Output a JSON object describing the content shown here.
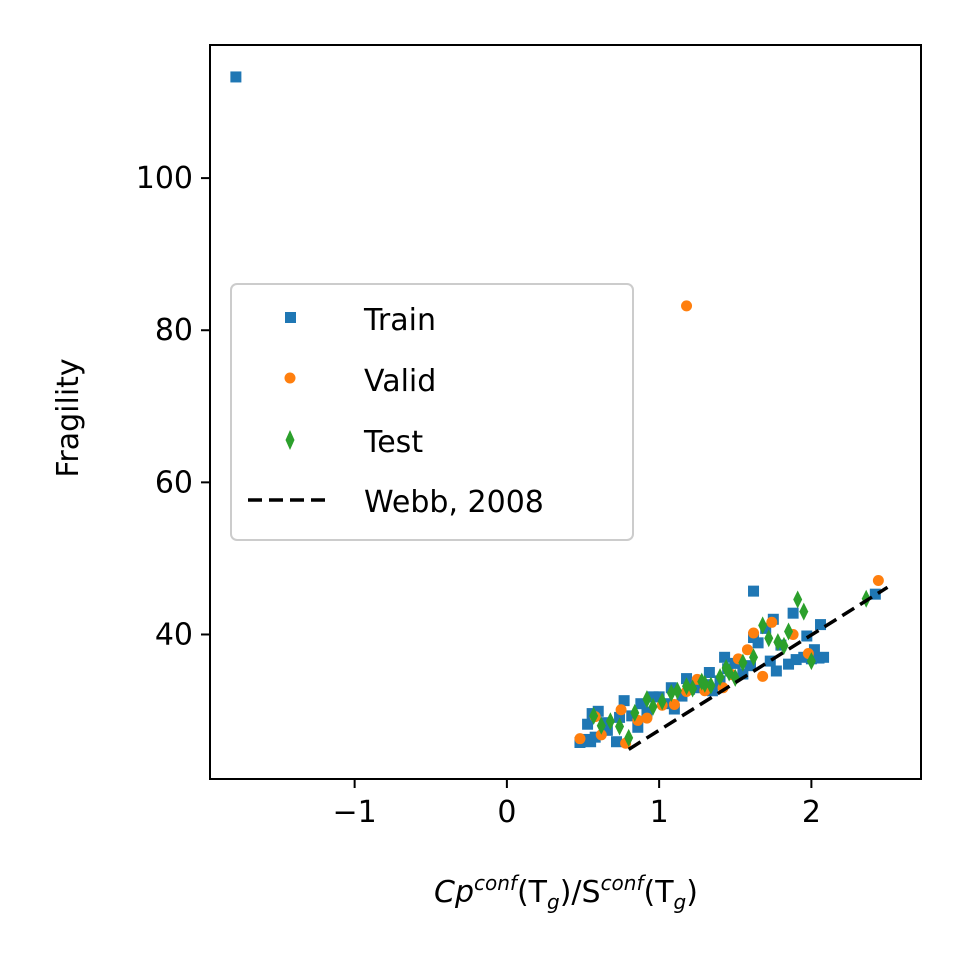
{
  "chart_data": {
    "type": "scatter",
    "xlabel": {
      "base": "Cp",
      "sup1": "conf",
      "mid1": "(T",
      "sub1": "g",
      "mid2": ")/S",
      "sup2": "conf",
      "mid3": "(T",
      "sub2": "g",
      "end": ")"
    },
    "ylabel": "Fragility",
    "xlim": [
      -1.95,
      2.72
    ],
    "ylim": [
      21.0,
      117.5
    ],
    "xticks": [
      {
        "value": -1,
        "label": "−1"
      },
      {
        "value": 0,
        "label": "0"
      },
      {
        "value": 1,
        "label": "1"
      },
      {
        "value": 2,
        "label": "2"
      }
    ],
    "yticks": [
      {
        "value": 40,
        "label": "40"
      },
      {
        "value": 60,
        "label": "60"
      },
      {
        "value": 80,
        "label": "80"
      },
      {
        "value": 100,
        "label": "100"
      }
    ],
    "grid": false,
    "legend_position": "center-left",
    "series": [
      {
        "name": "Train",
        "marker": "square",
        "color": "#1f77b4",
        "points": [
          [
            -1.78,
            113.3
          ],
          [
            1.62,
            45.7
          ],
          [
            0.48,
            25.8
          ],
          [
            0.52,
            26.2
          ],
          [
            0.55,
            25.9
          ],
          [
            0.58,
            26.5
          ],
          [
            0.53,
            28.2
          ],
          [
            0.56,
            29.6
          ],
          [
            0.6,
            29.9
          ],
          [
            0.66,
            27.4
          ],
          [
            0.72,
            25.9
          ],
          [
            0.77,
            31.3
          ],
          [
            0.82,
            29.3
          ],
          [
            0.86,
            27.8
          ],
          [
            0.92,
            29.8
          ],
          [
            1.0,
            31.8
          ],
          [
            1.05,
            30.9
          ],
          [
            1.1,
            30.2
          ],
          [
            1.15,
            31.9
          ],
          [
            1.2,
            32.8
          ],
          [
            1.25,
            33.0
          ],
          [
            1.3,
            33.4
          ],
          [
            1.35,
            32.6
          ],
          [
            1.4,
            33.9
          ],
          [
            1.45,
            35.5
          ],
          [
            1.5,
            36.2
          ],
          [
            1.55,
            34.8
          ],
          [
            1.6,
            35.9
          ],
          [
            1.65,
            38.9
          ],
          [
            1.7,
            40.8
          ],
          [
            1.75,
            42.0
          ],
          [
            1.8,
            38.6
          ],
          [
            1.85,
            36.1
          ],
          [
            1.9,
            36.7
          ],
          [
            1.95,
            37.0
          ],
          [
            2.0,
            36.8
          ],
          [
            2.05,
            36.9
          ],
          [
            2.08,
            37.0
          ],
          [
            2.02,
            38.0
          ],
          [
            1.88,
            42.8
          ],
          [
            1.97,
            39.8
          ],
          [
            1.77,
            35.2
          ],
          [
            1.73,
            36.5
          ],
          [
            2.06,
            41.3
          ],
          [
            1.62,
            39.6
          ],
          [
            1.43,
            37.0
          ],
          [
            1.33,
            35.0
          ],
          [
            1.18,
            34.2
          ],
          [
            1.08,
            33.0
          ],
          [
            0.96,
            31.8
          ],
          [
            0.64,
            28.4
          ],
          [
            0.74,
            29.1
          ],
          [
            0.88,
            30.9
          ],
          [
            2.42,
            45.3
          ]
        ]
      },
      {
        "name": "Valid",
        "marker": "circle",
        "color": "#ff7f0e",
        "points": [
          [
            1.18,
            83.2
          ],
          [
            2.44,
            47.1
          ],
          [
            0.48,
            26.3
          ],
          [
            0.62,
            26.8
          ],
          [
            0.75,
            30.1
          ],
          [
            0.78,
            25.7
          ],
          [
            0.92,
            29.0
          ],
          [
            1.02,
            30.7
          ],
          [
            1.1,
            30.8
          ],
          [
            1.18,
            32.5
          ],
          [
            1.3,
            32.6
          ],
          [
            1.42,
            33.0
          ],
          [
            1.48,
            34.7
          ],
          [
            1.52,
            36.8
          ],
          [
            1.62,
            40.2
          ],
          [
            1.68,
            34.5
          ],
          [
            1.74,
            41.6
          ],
          [
            1.88,
            40.0
          ],
          [
            1.98,
            37.5
          ],
          [
            0.58,
            29.2
          ],
          [
            0.86,
            28.7
          ],
          [
            1.25,
            34.1
          ],
          [
            1.58,
            38.0
          ]
        ]
      },
      {
        "name": "Test",
        "marker": "diamond",
        "color": "#2ca02c",
        "points": [
          [
            0.57,
            29.3
          ],
          [
            0.62,
            28.0
          ],
          [
            0.68,
            28.6
          ],
          [
            0.74,
            27.9
          ],
          [
            0.8,
            26.4
          ],
          [
            0.84,
            29.7
          ],
          [
            0.92,
            31.5
          ],
          [
            0.96,
            30.5
          ],
          [
            1.02,
            31.2
          ],
          [
            1.08,
            32.3
          ],
          [
            1.12,
            32.6
          ],
          [
            1.18,
            33.2
          ],
          [
            1.22,
            32.9
          ],
          [
            1.28,
            33.8
          ],
          [
            1.34,
            33.3
          ],
          [
            1.4,
            34.4
          ],
          [
            1.46,
            35.0
          ],
          [
            1.5,
            34.3
          ],
          [
            1.55,
            36.3
          ],
          [
            1.62,
            37.0
          ],
          [
            1.68,
            41.2
          ],
          [
            1.72,
            39.5
          ],
          [
            1.78,
            39.0
          ],
          [
            1.85,
            40.4
          ],
          [
            1.91,
            44.6
          ],
          [
            1.95,
            43.0
          ],
          [
            2.0,
            36.5
          ],
          [
            1.82,
            38.5
          ],
          [
            2.36,
            44.7
          ],
          [
            1.3,
            33.5
          ],
          [
            1.44,
            35.6
          ]
        ]
      },
      {
        "name": "Webb, 2008",
        "marker": "line",
        "color": "#000000",
        "line_style": "dashed",
        "points": [
          [
            0.8,
            24.9
          ],
          [
            2.5,
            46.2
          ]
        ]
      }
    ]
  }
}
